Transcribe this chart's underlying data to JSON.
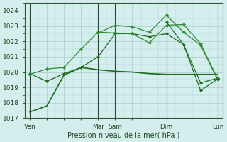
{
  "xlabel": "Pression niveau de la mer( hPa )",
  "ylabel": "",
  "bg_color": "#d4eeee",
  "grid_color": "#aacccc",
  "line_color_main": "#1a6b1a",
  "line_color_light": "#2d8b2d",
  "ylim": [
    1017,
    1024.5
  ],
  "yticks": [
    1017,
    1018,
    1019,
    1020,
    1021,
    1022,
    1023,
    1024
  ],
  "xtick_labels": [
    "Ven",
    "",
    "",
    "",
    "Mar",
    "Sam",
    "",
    "",
    "Dim",
    "",
    "",
    "Lun"
  ],
  "xtick_positions": [
    0,
    1,
    2,
    3,
    4,
    5,
    6,
    7,
    8,
    9,
    10,
    11
  ],
  "vlines": [
    0,
    4,
    5,
    8,
    11
  ],
  "line1": [
    1017.4,
    1017.8,
    1019.8,
    1020.3,
    1020.15,
    1020.05,
    1020.0,
    1019.9,
    1019.85,
    1019.85,
    1019.85,
    1019.85
  ],
  "line2": [
    1019.9,
    1019.4,
    1019.9,
    1020.3,
    1021.0,
    1022.5,
    1022.5,
    1022.3,
    1022.5,
    1021.8,
    1019.3,
    1019.6
  ],
  "line3": [
    1019.85,
    1020.2,
    1020.3,
    1021.5,
    1022.6,
    1022.55,
    1022.5,
    1021.9,
    1023.05,
    1023.1,
    1021.85,
    1019.55
  ],
  "line4": [
    null,
    null,
    null,
    null,
    1022.55,
    1023.05,
    1022.95,
    1022.6,
    1023.7,
    1022.6,
    1021.75,
    1019.5
  ],
  "line5": [
    null,
    null,
    null,
    null,
    null,
    null,
    null,
    null,
    1023.25,
    1021.8,
    1018.8,
    1019.55
  ]
}
